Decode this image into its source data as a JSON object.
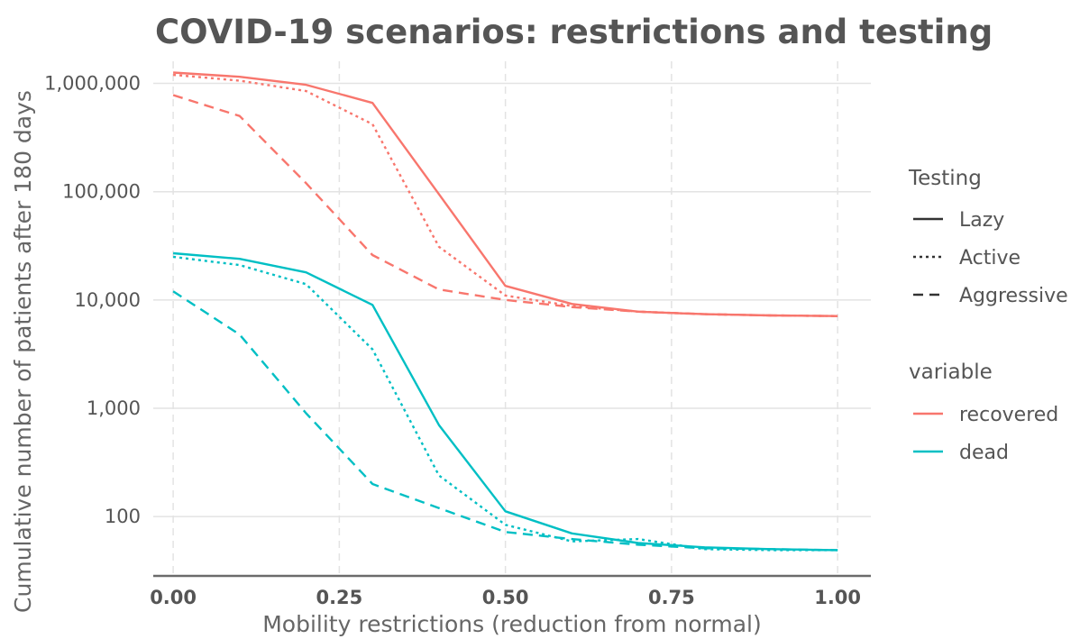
{
  "chart_data": {
    "type": "line",
    "title": "COVID-19 scenarios: restrictions and testing",
    "xlabel": "Mobility restrictions (reduction from normal)",
    "ylabel": "Cumulative number of patients after 180 days",
    "x_scale": "linear",
    "y_scale": "log10",
    "xlim": [
      -0.03,
      1.05
    ],
    "ylim": [
      30,
      1600000
    ],
    "x_ticks": [
      0,
      0.25,
      0.5,
      0.75,
      1.0
    ],
    "x_tick_labels": [
      "0.00",
      "0.25",
      "0.50",
      "0.75",
      "1.00"
    ],
    "y_ticks": [
      100,
      1000,
      10000,
      100000,
      1000000
    ],
    "y_tick_labels": [
      "100",
      "1,000",
      "10,000",
      "100,000",
      "1,000,000"
    ],
    "grid": true,
    "legend_placement": "right",
    "legends": [
      {
        "title": "Testing",
        "entries": [
          {
            "label": "Lazy",
            "linetype": "solid"
          },
          {
            "label": "Active",
            "linetype": "dotted"
          },
          {
            "label": "Aggressive",
            "linetype": "dashed"
          }
        ]
      },
      {
        "title": "variable",
        "entries": [
          {
            "label": "recovered",
            "color": "#F8766D"
          },
          {
            "label": "dead",
            "color": "#00BFC4"
          }
        ]
      }
    ],
    "colors": {
      "recovered": "#F8766D",
      "dead": "#00BFC4"
    },
    "x": [
      0,
      0.1,
      0.2,
      0.3,
      0.4,
      0.5,
      0.6,
      0.7,
      0.8,
      0.9,
      1.0
    ],
    "series": [
      {
        "variable": "recovered",
        "testing": "Lazy",
        "values": [
          1260000,
          1150000,
          970000,
          660000,
          95000,
          13500,
          9200,
          7800,
          7400,
          7200,
          7100
        ]
      },
      {
        "variable": "recovered",
        "testing": "Active",
        "values": [
          1200000,
          1060000,
          850000,
          420000,
          31000,
          11000,
          8800,
          7800,
          7400,
          7200,
          7100
        ]
      },
      {
        "variable": "recovered",
        "testing": "Aggressive",
        "values": [
          780000,
          500000,
          120000,
          26000,
          12500,
          10000,
          8600,
          7800,
          7400,
          7200,
          7100
        ]
      },
      {
        "variable": "dead",
        "testing": "Lazy",
        "values": [
          27000,
          24000,
          18000,
          9000,
          700,
          112,
          70,
          57,
          52,
          50,
          49
        ]
      },
      {
        "variable": "dead",
        "testing": "Active",
        "values": [
          25000,
          21000,
          14000,
          3500,
          240,
          84,
          59,
          62,
          50,
          49,
          49
        ]
      },
      {
        "variable": "dead",
        "testing": "Aggressive",
        "values": [
          12000,
          4800,
          900,
          200,
          120,
          72,
          62,
          55,
          51,
          50,
          49
        ]
      }
    ]
  }
}
